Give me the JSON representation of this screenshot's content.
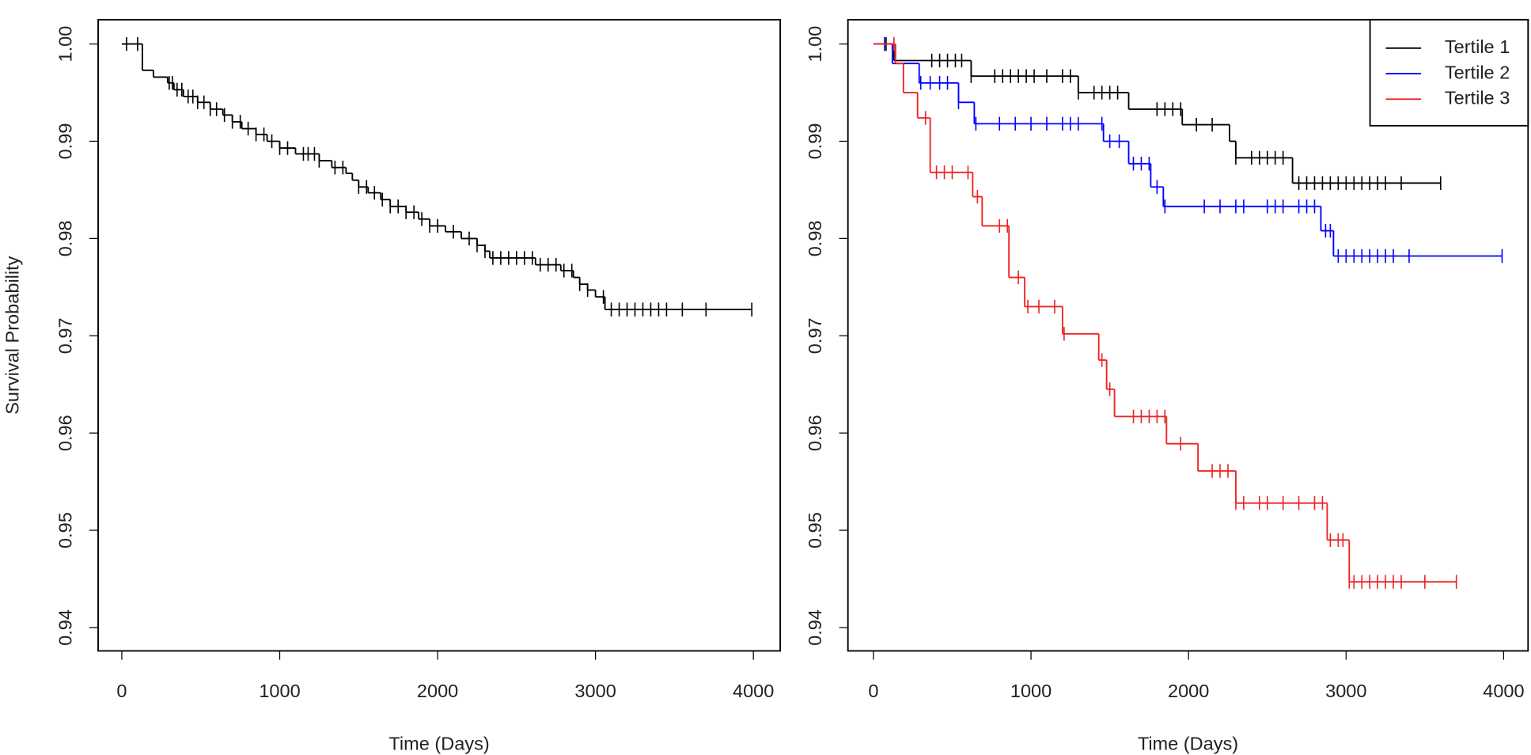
{
  "chart_data": [
    {
      "type": "step",
      "xlabel": "Time (Days)",
      "ylabel": "Survival Probability",
      "xlim": [
        -150,
        4170
      ],
      "ylim": [
        0.9376,
        1.0025
      ],
      "xticks": [
        0,
        1000,
        2000,
        3000,
        4000
      ],
      "yticks": [
        0.94,
        0.95,
        0.96,
        0.97,
        0.98,
        0.99,
        {
          "value": 1,
          "label": "1.00"
        }
      ],
      "series": [
        {
          "color": "#000000",
          "x": [
            0,
            130,
            200,
            290,
            330,
            390,
            480,
            560,
            640,
            700,
            760,
            850,
            920,
            1000,
            1100,
            1250,
            1330,
            1420,
            1460,
            1500,
            1560,
            1640,
            1700,
            1800,
            1880,
            1950,
            2050,
            2150,
            2250,
            2300,
            2330,
            2620,
            2780,
            2860,
            2900,
            2950,
            3000,
            3060
          ],
          "values": [
            1,
            0.9973,
            0.9966,
            0.996,
            0.9953,
            0.9946,
            0.994,
            0.9933,
            0.9927,
            0.992,
            0.9913,
            0.9907,
            0.99,
            0.9893,
            0.9887,
            0.988,
            0.9873,
            0.9867,
            0.986,
            0.9853,
            0.9847,
            0.984,
            0.9833,
            0.9827,
            0.982,
            0.9813,
            0.9807,
            0.98,
            0.9793,
            0.9787,
            0.978,
            0.9773,
            0.9767,
            0.976,
            0.9753,
            0.9747,
            0.974,
            0.9727
          ],
          "censor": [
            30,
            100,
            300,
            320,
            350,
            380,
            420,
            450,
            480,
            520,
            560,
            600,
            650,
            700,
            750,
            800,
            850,
            900,
            950,
            1000,
            1050,
            1150,
            1180,
            1220,
            1250,
            1350,
            1400,
            1500,
            1550,
            1600,
            1650,
            1700,
            1750,
            1800,
            1850,
            1900,
            1950,
            2000,
            2100,
            2200,
            2250,
            2300,
            2350,
            2400,
            2450,
            2500,
            2550,
            2600,
            2650,
            2700,
            2750,
            2800,
            2850,
            2900,
            2950,
            3050,
            3100,
            3150,
            3200,
            3250,
            3300,
            3350,
            3400,
            3450,
            3550,
            3700,
            3990
          ]
        }
      ]
    },
    {
      "type": "step",
      "xlabel": "Time (Days)",
      "xlim": [
        -162,
        4155
      ],
      "ylim": [
        0.9376,
        1.0025
      ],
      "xticks": [
        0,
        1000,
        2000,
        3000,
        4000
      ],
      "yticks": [
        0.94,
        0.95,
        0.96,
        0.97,
        0.98,
        0.99,
        {
          "value": 1,
          "label": "1.00"
        }
      ],
      "legend": "top-right",
      "series": [
        {
          "name": "Tertile 1",
          "color": "#000000",
          "x": [
            0,
            130,
            620,
            1300,
            1620,
            1960,
            2260,
            2300,
            2660
          ],
          "values": [
            1,
            0.9983,
            0.9967,
            0.995,
            0.9933,
            0.9917,
            0.99,
            0.9883,
            0.9857
          ],
          "censor": [
            80,
            370,
            420,
            470,
            520,
            560,
            620,
            770,
            820,
            870,
            920,
            970,
            1020,
            1100,
            1200,
            1250,
            1300,
            1400,
            1450,
            1500,
            1550,
            1800,
            1850,
            1900,
            1950,
            2050,
            2150,
            2300,
            2400,
            2450,
            2500,
            2550,
            2600,
            2700,
            2750,
            2800,
            2850,
            2900,
            2950,
            3000,
            3050,
            3100,
            3150,
            3200,
            3250,
            3350,
            3600
          ]
        },
        {
          "name": "Tertile 2",
          "color": "#0000ff",
          "x": [
            0,
            120,
            290,
            540,
            640,
            1460,
            1620,
            1760,
            1840,
            2840,
            2920
          ],
          "values": [
            1,
            0.998,
            0.996,
            0.994,
            0.9918,
            0.99,
            0.9877,
            0.9853,
            0.9833,
            0.9808,
            0.9782
          ],
          "censor": [
            70,
            300,
            360,
            420,
            470,
            540,
            650,
            800,
            900,
            1000,
            1100,
            1200,
            1250,
            1300,
            1450,
            1500,
            1560,
            1650,
            1700,
            1750,
            1800,
            1850,
            2100,
            2200,
            2300,
            2350,
            2500,
            2550,
            2600,
            2700,
            2750,
            2800,
            2870,
            2900,
            2950,
            3000,
            3050,
            3100,
            3150,
            3200,
            3250,
            3300,
            3400,
            3990
          ]
        },
        {
          "name": "Tertile 3",
          "color": "#ee2222",
          "x": [
            0,
            140,
            190,
            280,
            360,
            630,
            690,
            860,
            960,
            1200,
            1430,
            1480,
            1530,
            1860,
            2060,
            2300,
            2880,
            3020
          ],
          "values": [
            1,
            0.998,
            0.995,
            0.9924,
            0.9868,
            0.9843,
            0.9813,
            0.976,
            0.973,
            0.9702,
            0.9675,
            0.9645,
            0.9617,
            0.9589,
            0.9561,
            0.9528,
            0.949,
            0.9447
          ],
          "censor": [
            130,
            330,
            400,
            450,
            500,
            600,
            660,
            800,
            850,
            920,
            980,
            1050,
            1150,
            1210,
            1450,
            1500,
            1650,
            1700,
            1750,
            1800,
            1850,
            1950,
            2150,
            2200,
            2250,
            2300,
            2350,
            2450,
            2500,
            2600,
            2700,
            2800,
            2850,
            2900,
            2950,
            2980,
            3020,
            3050,
            3100,
            3150,
            3200,
            3250,
            3300,
            3350,
            3500,
            3700
          ]
        }
      ]
    }
  ]
}
